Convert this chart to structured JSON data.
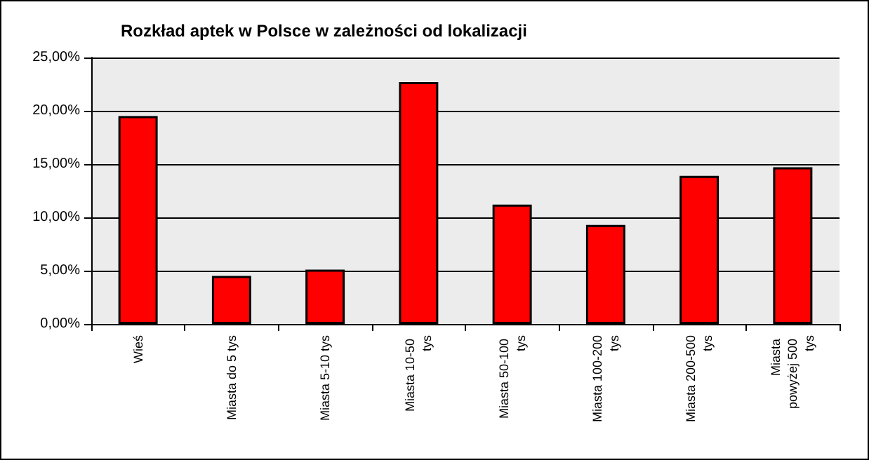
{
  "chart_data": {
    "type": "bar",
    "title": "Rozkład aptek w Polsce w zależności od lokalizacji",
    "categories": [
      "Wieś",
      "Miasta do 5 tys",
      "Miasta 5-10 tys",
      "Miasta 10-50 tys",
      "Miasta 50-100 tys",
      "Miasta 100-200 tys",
      "Miasta 200-500 tys",
      "Miasta powyżej 500 tys"
    ],
    "values": [
      19.5,
      4.5,
      5.1,
      22.7,
      11.2,
      9.3,
      13.9,
      14.7
    ],
    "color": "#ff0000",
    "ylim": [
      0,
      25
    ],
    "yticks": [
      {
        "value": 0,
        "label": "0,00%"
      },
      {
        "value": 5,
        "label": "5,00%"
      },
      {
        "value": 10,
        "label": "10,00%"
      },
      {
        "value": 15,
        "label": "15,00%"
      },
      {
        "value": 20,
        "label": "20,00%"
      },
      {
        "value": 25,
        "label": "25,00%"
      }
    ],
    "grid": "y"
  }
}
